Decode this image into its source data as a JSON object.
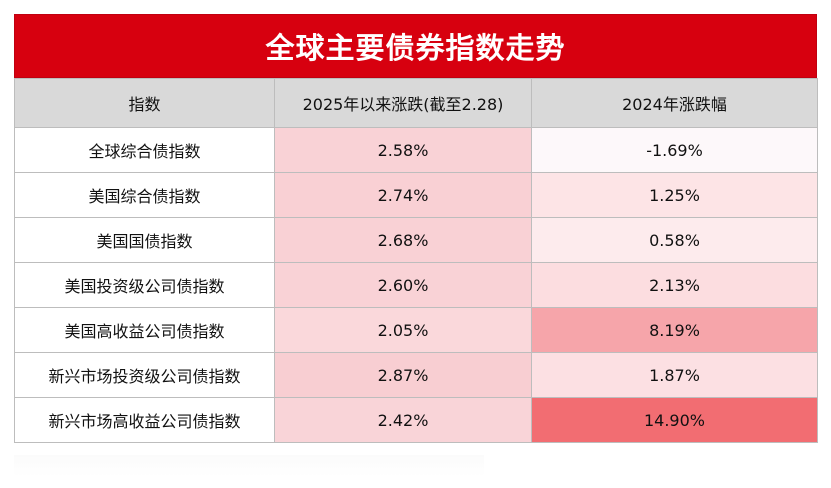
{
  "title": "全球主要债券指数走势",
  "table": {
    "headers": [
      "指数",
      "2025年以来涨跌(截至2.28)",
      "2024年涨跌幅"
    ],
    "rows": [
      {
        "name": "全球综合债指数",
        "ytd": "2.58%",
        "ytd_color": "#f9d2d6",
        "y2024": "-1.69%",
        "y2024_color": "#fdf8fa"
      },
      {
        "name": "美国综合债指数",
        "ytd": "2.74%",
        "ytd_color": "#f9d0d4",
        "y2024": "1.25%",
        "y2024_color": "#fde4e6"
      },
      {
        "name": "美国国债指数",
        "ytd": "2.68%",
        "ytd_color": "#f9d1d5",
        "y2024": "0.58%",
        "y2024_color": "#fdebed"
      },
      {
        "name": "美国投资级公司债指数",
        "ytd": "2.60%",
        "ytd_color": "#f9d2d6",
        "y2024": "2.13%",
        "y2024_color": "#fcdde0"
      },
      {
        "name": "美国高收益公司债指数",
        "ytd": "2.05%",
        "ytd_color": "#fad8db",
        "y2024": "8.19%",
        "y2024_color": "#f6a5aa"
      },
      {
        "name": "新兴市场投资级公司债指数",
        "ytd": "2.87%",
        "ytd_color": "#f8ced2",
        "y2024": "1.87%",
        "y2024_color": "#fce0e3"
      },
      {
        "name": "新兴市场高收益公司债指数",
        "ytd": "2.42%",
        "ytd_color": "#f9d4d8",
        "y2024": "14.90%",
        "y2024_color": "#f26d72"
      }
    ]
  }
}
